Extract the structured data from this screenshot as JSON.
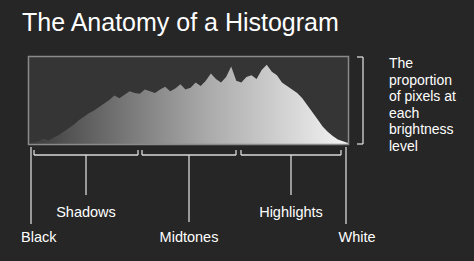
{
  "chart_data": {
    "type": "area",
    "title": "The Anatomy of a Histogram",
    "values": [
      1,
      2,
      3,
      6,
      4,
      7,
      10,
      14,
      18,
      22,
      27,
      31,
      35,
      38,
      42,
      46,
      50,
      55,
      52,
      56,
      60,
      58,
      57,
      62,
      60,
      58,
      62,
      65,
      60,
      63,
      68,
      62,
      64,
      70,
      66,
      72,
      80,
      74,
      70,
      76,
      88,
      72,
      70,
      76,
      78,
      74,
      84,
      90,
      82,
      78,
      70,
      66,
      62,
      58,
      52,
      44,
      36,
      28,
      20,
      14,
      9,
      5,
      3,
      1
    ],
    "ylim": [
      0,
      100
    ],
    "tick_labels": false,
    "annotation": "The proportion of pixels at each brightness level",
    "ends": [
      "Black",
      "White"
    ],
    "regions": [
      "Shadows",
      "Midtones",
      "Highlights"
    ]
  }
}
